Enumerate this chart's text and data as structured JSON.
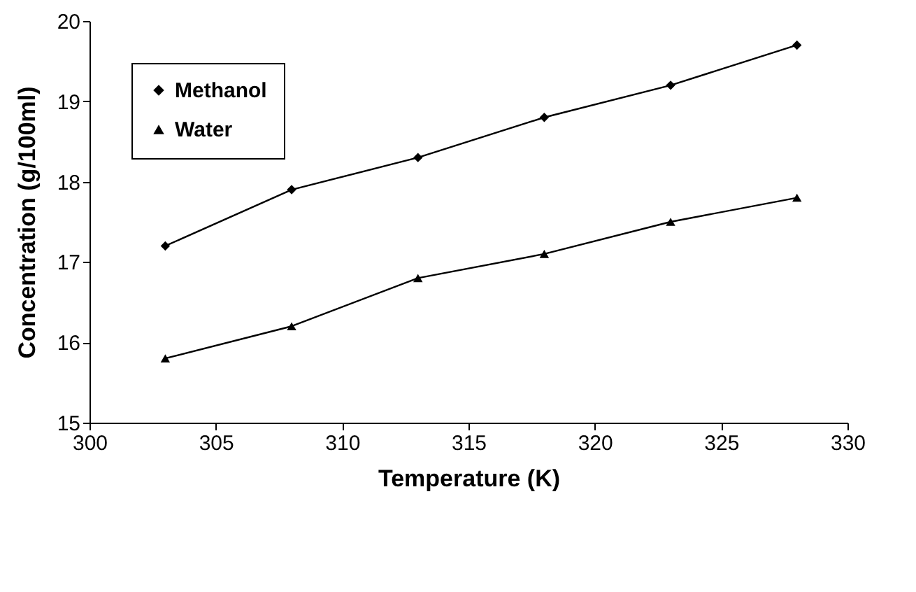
{
  "chart_data": {
    "type": "line",
    "xlabel": "Temperature (K)",
    "ylabel": "Concentration (g/100ml)",
    "x": [
      303,
      308,
      313,
      318,
      323,
      328
    ],
    "series": [
      {
        "name": "Methanol",
        "color": "#000000",
        "marker": "diamond",
        "values": [
          17.2,
          17.9,
          18.3,
          18.8,
          19.2,
          19.7
        ]
      },
      {
        "name": "Water",
        "color": "#000000",
        "marker": "triangle",
        "values": [
          15.8,
          16.2,
          16.8,
          17.1,
          17.5,
          17.8
        ]
      }
    ],
    "xlim": [
      300,
      330
    ],
    "xticks": [
      300,
      305,
      310,
      315,
      320,
      325,
      330
    ],
    "ylim": [
      15,
      20
    ],
    "yticks": [
      15,
      16,
      17,
      18,
      19,
      20
    ],
    "grid": false,
    "legend": "top left",
    "line_style": "solid"
  }
}
